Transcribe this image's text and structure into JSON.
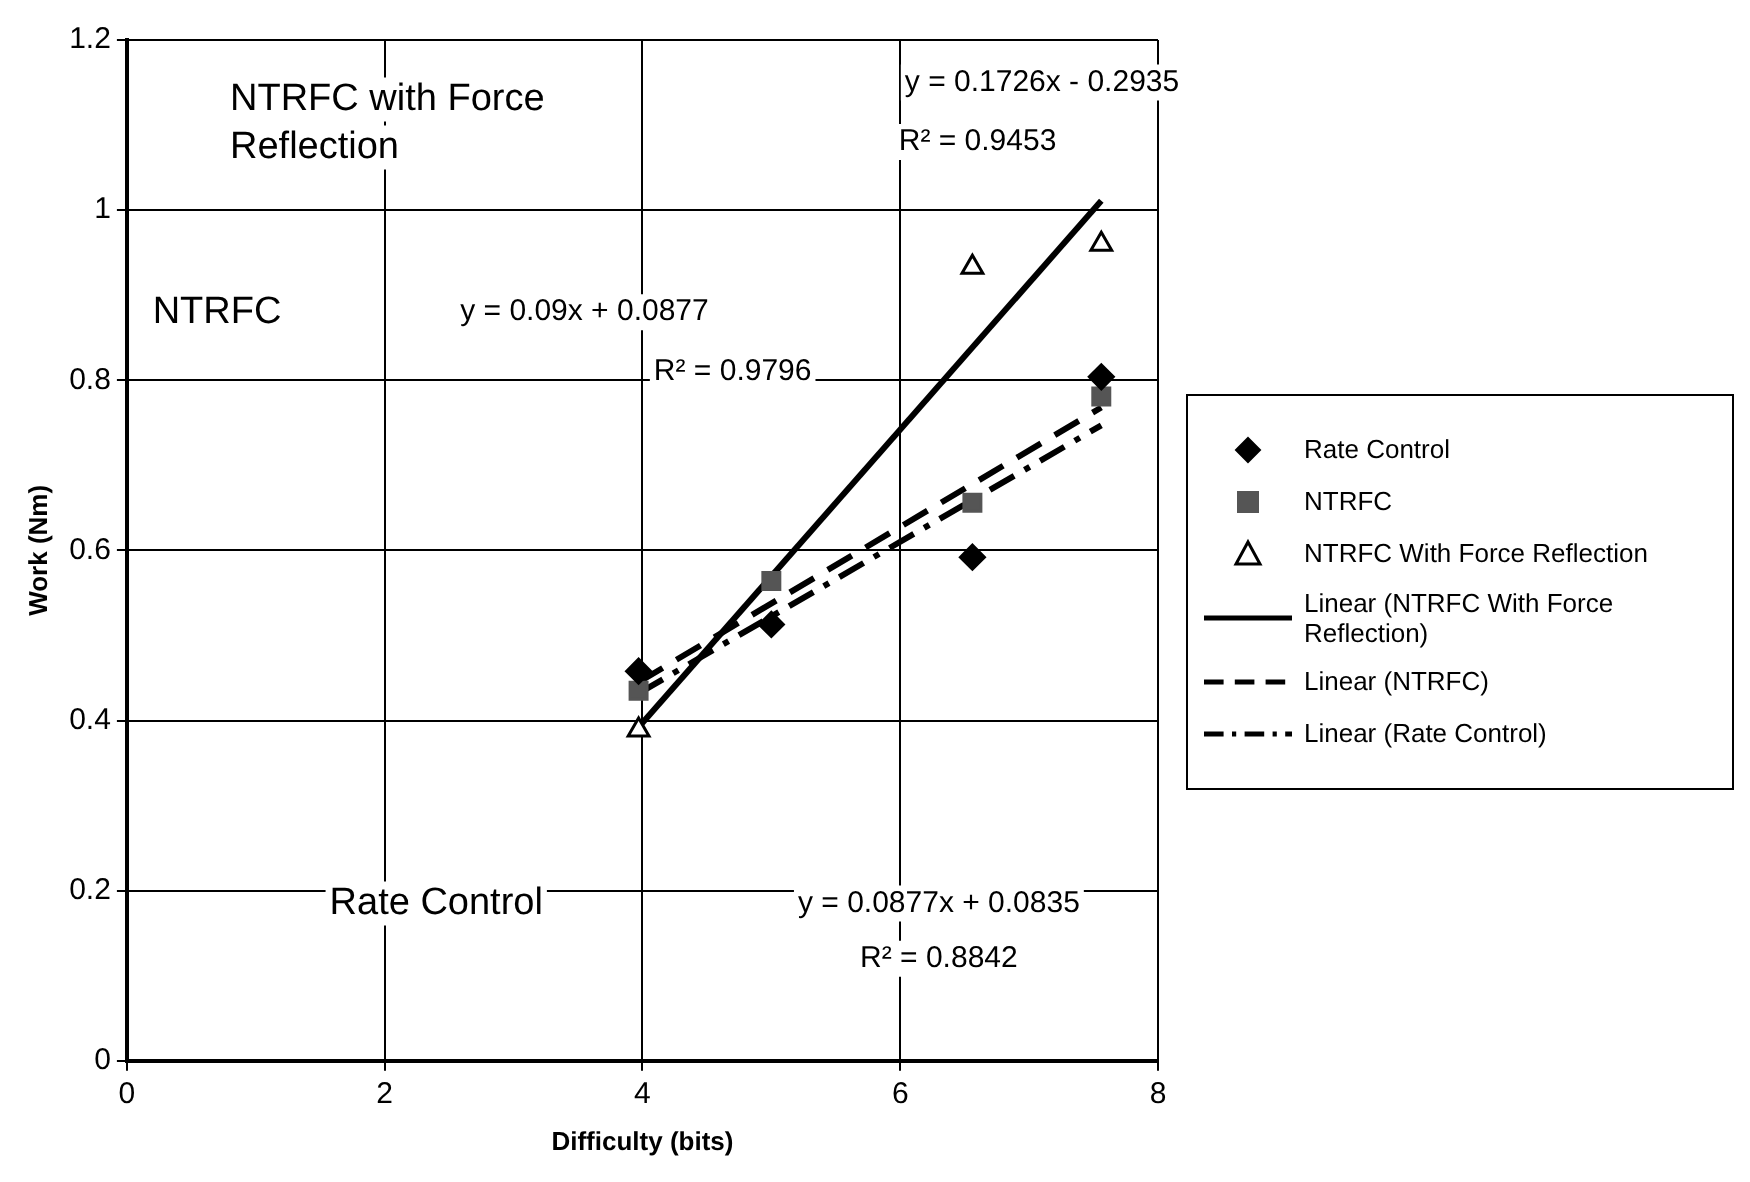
{
  "chart_data": {
    "type": "scatter",
    "xlabel": "Difficulty (bits)",
    "ylabel": "Work (Nm)",
    "xlim": [
      0,
      8
    ],
    "xticks": [
      0,
      2,
      4,
      6,
      8
    ],
    "ylim": [
      0,
      1.2
    ],
    "yticks": [
      0,
      0.2,
      0.4,
      0.6,
      0.8,
      1,
      1.2
    ],
    "grid": true,
    "legend": "right",
    "series": [
      {
        "name": "Rate Control",
        "marker": "diamond",
        "color": "#000000",
        "x": [
          3.97,
          5.0,
          6.56,
          7.56
        ],
        "values": [
          0.458,
          0.513,
          0.592,
          0.804
        ]
      },
      {
        "name": "NTRFC",
        "marker": "square",
        "color": "#555555",
        "x": [
          3.97,
          5.0,
          6.56,
          7.56
        ],
        "values": [
          0.435,
          0.564,
          0.656,
          0.781
        ]
      },
      {
        "name": "NTRFC With Force Reflection",
        "marker": "triangle",
        "color": "#000000",
        "x": [
          3.97,
          5.0,
          6.56,
          7.56
        ],
        "values": [
          0.389,
          null,
          0.933,
          0.96
        ]
      },
      {
        "name": "Linear (NTRFC With Force Reflection)",
        "type": "line",
        "marker": "none",
        "line_style": "solid",
        "color": "#000000",
        "x": [
          3.97,
          7.56
        ],
        "values": [
          0.392,
          1.011
        ]
      },
      {
        "name": "Linear (NTRFC)",
        "type": "line",
        "marker": "none",
        "line_style": "dashed",
        "color": "#000000",
        "x": [
          3.97,
          7.56
        ],
        "values": [
          0.445,
          0.768
        ]
      },
      {
        "name": "Linear (Rate Control)",
        "type": "line",
        "marker": "none",
        "line_style": "dashdot",
        "color": "#000000",
        "x": [
          3.97,
          7.56
        ],
        "values": [
          0.432,
          0.747
        ]
      }
    ],
    "annotations": [
      "NTRFC with Force Reflection",
      "y = 0.1726x - 0.2935",
      "R² = 0.9453",
      "NTRFC",
      "y = 0.09x + 0.0877",
      "R² = 0.9796",
      "Rate Control",
      "y = 0.0877x + 0.0835",
      "R² = 0.8842"
    ]
  }
}
